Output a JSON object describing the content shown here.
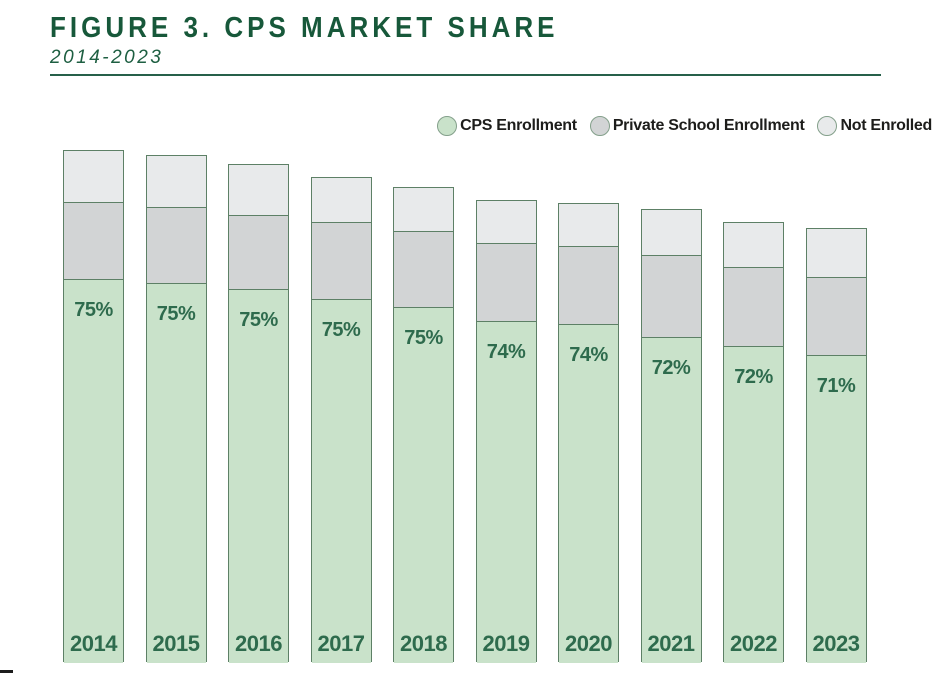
{
  "header": {
    "title": "FIGURE 3. CPS MARKET SHARE",
    "subtitle": "2014-2023"
  },
  "colors": {
    "title_green": "#17583a",
    "label_green": "#2e6b4d",
    "bar_border_green": "#5d8066",
    "cps_green_fill": "#c9e2ca",
    "private_gray_fill": "#d2d4d5",
    "not_enrolled_fill": "#e8eaeb",
    "legend_text": "#1d1d1b"
  },
  "legend": [
    {
      "label": "CPS Enrollment",
      "color": "#c9e2ca"
    },
    {
      "label": "Private School Enrollment",
      "color": "#d2d4d5"
    },
    {
      "label": "Not Enrolled",
      "color": "#e8eaeb"
    }
  ],
  "chart_data": {
    "type": "bar",
    "subtype": "stacked",
    "title": "FIGURE 3. CPS MARKET SHARE",
    "subtitle": "2014-2023",
    "grid": false,
    "legend_position": "top-right",
    "categories": [
      "2014",
      "2015",
      "2016",
      "2017",
      "2018",
      "2019",
      "2020",
      "2021",
      "2022",
      "2023"
    ],
    "series": [
      {
        "name": "CPS Enrollment",
        "values_pct": [
          75,
          75,
          75,
          75,
          75,
          74,
          74,
          72,
          72,
          71
        ],
        "labels": [
          "75%",
          "75%",
          "75%",
          "75%",
          "75%",
          "74%",
          "74%",
          "72%",
          "72%",
          "71%"
        ]
      },
      {
        "name": "Private School Enrollment",
        "values_pct": [
          15,
          15,
          15,
          16,
          16,
          17,
          17,
          18,
          18,
          18
        ]
      },
      {
        "name": "Not Enrolled",
        "values_pct": [
          10,
          10,
          10,
          9,
          9,
          9,
          9,
          10,
          10,
          11
        ]
      }
    ],
    "total_height_index": [
      100,
      99,
      97.3,
      94.7,
      92.8,
      90.2,
      89.6,
      88.5,
      85.9,
      84.8
    ]
  }
}
